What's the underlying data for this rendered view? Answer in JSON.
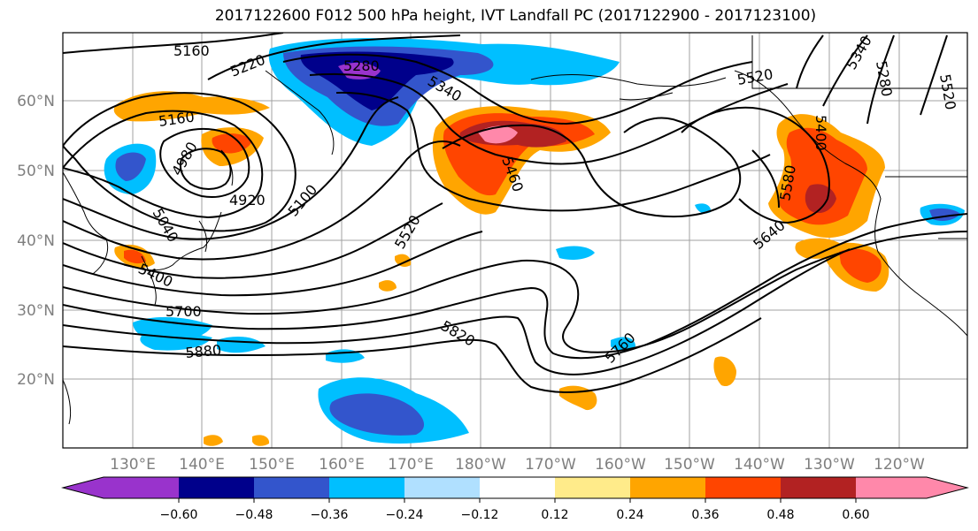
{
  "title": "2017122600 F012 500 hPa height, IVT Landfall PC (2017122900 - 2017123100)",
  "map": {
    "lat_labels": [
      "60°N",
      "50°N",
      "40°N",
      "30°N",
      "20°N"
    ],
    "lon_labels": [
      "130°E",
      "140°E",
      "150°E",
      "160°E",
      "170°E",
      "180°W",
      "170°W",
      "160°W",
      "150°W",
      "140°W",
      "130°W",
      "120°W"
    ],
    "contour_labels": [
      "5160",
      "5220",
      "5280",
      "5340",
      "5520",
      "5400",
      "5340",
      "5280",
      "5160",
      "4980",
      "4920",
      "5040",
      "5100",
      "5460",
      "5520",
      "5580",
      "5640",
      "5400",
      "5700",
      "5880",
      "5820",
      "5760",
      "5520"
    ],
    "label_color": "#7f7f7f"
  },
  "colorbar": {
    "tick_labels": [
      "−0.60",
      "−0.48",
      "−0.36",
      "−0.24",
      "−0.12",
      "0.12",
      "0.24",
      "0.36",
      "0.48",
      "0.60"
    ],
    "colors": [
      "#9933cc",
      "#00008b",
      "#3355cc",
      "#00bfff",
      "#b0e0ff",
      "#ffffff",
      "#ffeb8a",
      "#ffa500",
      "#ff4500",
      "#b22222",
      "#ff88aa",
      "#ff88aa"
    ]
  }
}
